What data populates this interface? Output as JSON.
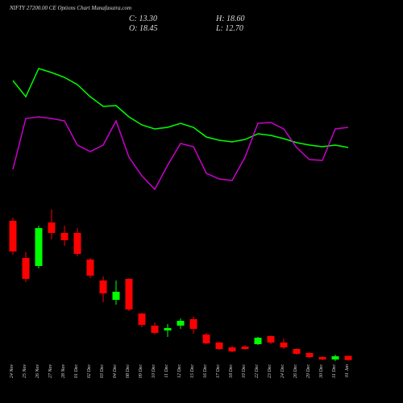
{
  "chart_data": {
    "type": "candlestick",
    "title": "NIFTY 27200.00 CE Options Chart Munafasutra.com",
    "ohlc_labels": {
      "close": "C: 13.30",
      "high": "H: 18.60",
      "open": "O: 18.45",
      "low": "L: 12.70"
    },
    "categories": [
      "24 Nov",
      "25 Nov",
      "26 Nov",
      "27 Nov",
      "28 Nov",
      "01 Dec",
      "02 Dec",
      "03 Dec",
      "04 Dec",
      "08 Dec",
      "09 Dec",
      "10 Dec",
      "11 Dec",
      "12 Dec",
      "15 Dec",
      "16 Dec",
      "17 Dec",
      "18 Dec",
      "19 Dec",
      "22 Dec",
      "23 Dec",
      "24 Dec",
      "26 Dec",
      "29 Dec",
      "30 Dec",
      "31 Dec",
      "01 Jan"
    ],
    "open": [
      186,
      140,
      130,
      184,
      171,
      171,
      138,
      112,
      88,
      114,
      71,
      56,
      50,
      56,
      64,
      45,
      35,
      29,
      30,
      33,
      43,
      35,
      27,
      22,
      17,
      14,
      18.45
    ],
    "close": [
      148,
      114,
      177,
      171,
      162,
      145,
      118,
      96,
      98,
      76,
      57,
      47,
      53,
      62,
      52,
      34,
      27,
      24,
      27,
      41,
      35,
      29,
      21,
      17,
      14,
      18,
      13.3
    ],
    "high": [
      190,
      147,
      180,
      200,
      180,
      177,
      140,
      117,
      112,
      115,
      72,
      60,
      58,
      65,
      67,
      47,
      36,
      31,
      32,
      42,
      44,
      40,
      28,
      23,
      18,
      20,
      18.6
    ],
    "low": [
      144,
      110,
      127,
      163,
      155,
      142,
      115,
      85,
      82,
      74,
      54,
      45,
      42,
      52,
      46,
      33,
      26,
      23,
      26,
      32,
      33,
      27,
      20,
      16,
      13,
      12,
      12.7
    ],
    "up_color": "#00ff00",
    "down_color": "#ff0000",
    "ylim": [
      0,
      200
    ],
    "lines": {
      "type": "line",
      "ylim": [
        0,
        200
      ],
      "series": [
        {
          "color": "#00ff00",
          "values": [
            160,
            140,
            175,
            170,
            164,
            155,
            140,
            128,
            129,
            115,
            105,
            100,
            102,
            107,
            102,
            90,
            86,
            84,
            87,
            94,
            92,
            88,
            83,
            80,
            78,
            80,
            77
          ]
        },
        {
          "color": "#cc00cc",
          "values": [
            50,
            113,
            115,
            113,
            110,
            80,
            72,
            80,
            110,
            65,
            42,
            25,
            55,
            82,
            78,
            45,
            38,
            36,
            65,
            107,
            108,
            100,
            77,
            62,
            61,
            100,
            102
          ]
        }
      ]
    }
  }
}
